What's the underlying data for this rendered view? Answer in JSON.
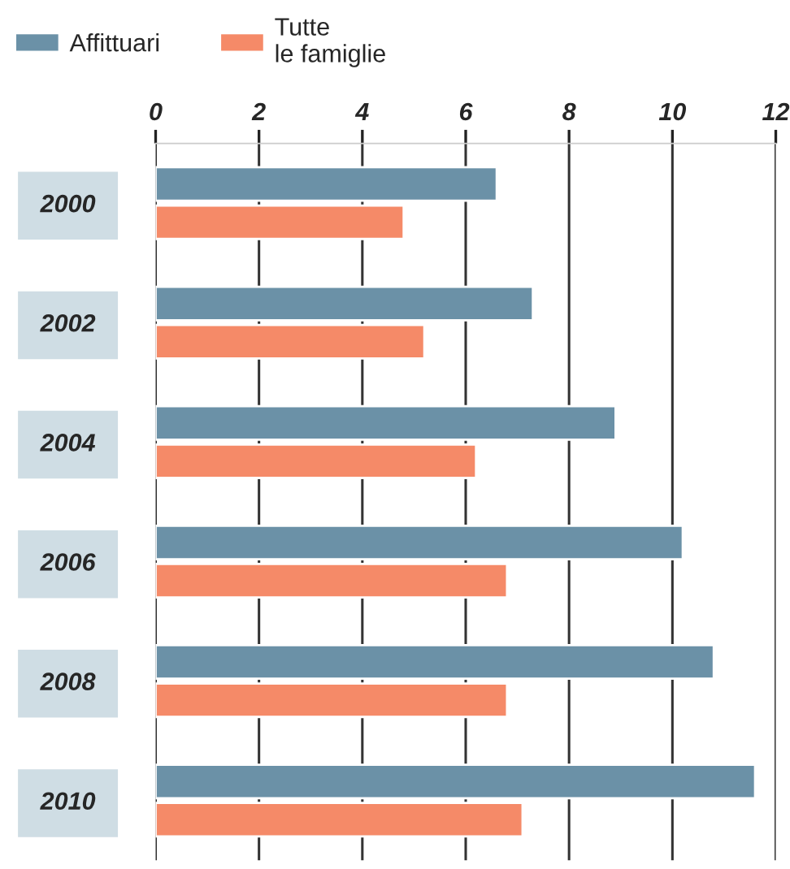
{
  "chart_data": {
    "type": "bar",
    "orientation": "horizontal",
    "categories": [
      "2000",
      "2002",
      "2004",
      "2006",
      "2008",
      "2010"
    ],
    "series": [
      {
        "name": "Affittuari",
        "color": "#6b91a7",
        "values": [
          6.6,
          7.3,
          8.9,
          10.2,
          10.8,
          11.6
        ]
      },
      {
        "name": "Tutte\nle famiglie",
        "color": "#f58a68",
        "values": [
          4.8,
          5.2,
          6.2,
          6.8,
          6.8,
          7.1
        ]
      }
    ],
    "xlim": [
      0,
      12
    ],
    "xticks": [
      0,
      2,
      4,
      6,
      8,
      10,
      12
    ],
    "grid": "x",
    "legend": "top left"
  }
}
